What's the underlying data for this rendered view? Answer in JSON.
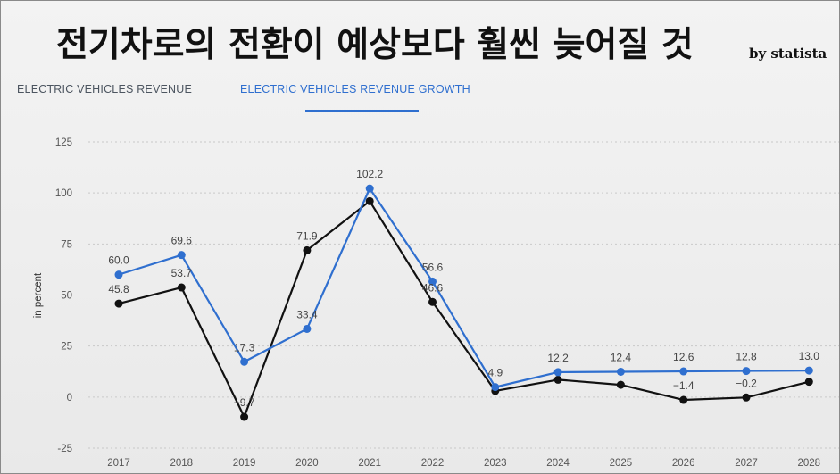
{
  "header": {
    "title": "전기차로의 전환이 예상보다 훨씬 늦어질 것",
    "byline": "by statista"
  },
  "tabs": [
    {
      "label": "ELECTRIC VEHICLES REVENUE",
      "active": false
    },
    {
      "label": "ELECTRIC VEHICLES REVENUE GROWTH",
      "active": true
    }
  ],
  "chart_data": {
    "type": "line",
    "title": "",
    "xlabel": "",
    "ylabel": "in percent",
    "ylim": [
      -25,
      125
    ],
    "yticks": [
      -25,
      0,
      25,
      50,
      75,
      100,
      125
    ],
    "categories": [
      "2017",
      "2018",
      "2019",
      "2020",
      "2021",
      "2022",
      "2023",
      "2024",
      "2025",
      "2026",
      "2027",
      "2028"
    ],
    "grid": true,
    "series": [
      {
        "name": "Electric vehicles revenue growth (blue)",
        "color": "#2f6fcf",
        "values": [
          60.0,
          69.6,
          17.3,
          33.4,
          102.2,
          56.6,
          4.9,
          12.2,
          12.4,
          12.6,
          12.8,
          13.0
        ],
        "labels": [
          "60.0",
          "69.6",
          "17.3",
          "33.4",
          "102.2",
          "56.6",
          "4.9",
          "12.2",
          "12.4",
          "12.6",
          "12.8",
          "13.0"
        ]
      },
      {
        "name": "Electric vehicles revenue growth (black)",
        "color": "#111111",
        "values": [
          45.8,
          53.7,
          -9.7,
          71.9,
          96.0,
          46.6,
          3.0,
          8.5,
          6.0,
          -1.4,
          -0.2,
          7.5
        ],
        "labels": [
          "45.8",
          "53.7",
          "-9.7",
          "71.9",
          "",
          "46.6",
          "",
          "",
          "",
          "-1.4",
          "-0.2",
          ""
        ]
      }
    ]
  }
}
